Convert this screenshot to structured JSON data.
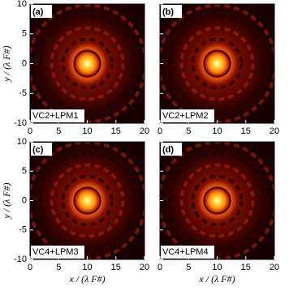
{
  "chart_data": [
    {
      "type": "image",
      "label": "(a)",
      "annotation": "VC2+LPM1",
      "xlim": [
        0,
        20
      ],
      "ylim": [
        -10,
        10
      ],
      "xticks": [
        0,
        5,
        10,
        15,
        20
      ],
      "yticks": [
        -10,
        -5,
        0,
        5,
        10
      ],
      "ylabel": "y / (λ F#)"
    },
    {
      "type": "image",
      "label": "(b)",
      "annotation": "VC2+LPM2",
      "xlim": [
        0,
        20
      ],
      "ylim": [
        -10,
        10
      ],
      "xticks": [
        0,
        5,
        10,
        15,
        20
      ],
      "yticks": [
        -10,
        -5,
        0,
        5,
        10
      ]
    },
    {
      "type": "image",
      "label": "(c)",
      "annotation": "VC4+LPM3",
      "xlim": [
        0,
        20
      ],
      "ylim": [
        -10,
        10
      ],
      "xticks": [
        0,
        5,
        10,
        15,
        20
      ],
      "yticks": [
        -10,
        -5,
        0,
        5,
        10
      ],
      "xlabel": "x / (λ F#)",
      "ylabel": "y / (λ F#)"
    },
    {
      "type": "image",
      "label": "(d)",
      "annotation": "VC4+LPM4",
      "xlim": [
        0,
        20
      ],
      "ylim": [
        -10,
        10
      ],
      "xticks": [
        0,
        5,
        10,
        15,
        20
      ],
      "yticks": [
        -10,
        -5,
        0,
        5,
        10
      ],
      "xlabel": "x / (λ F#)"
    }
  ]
}
